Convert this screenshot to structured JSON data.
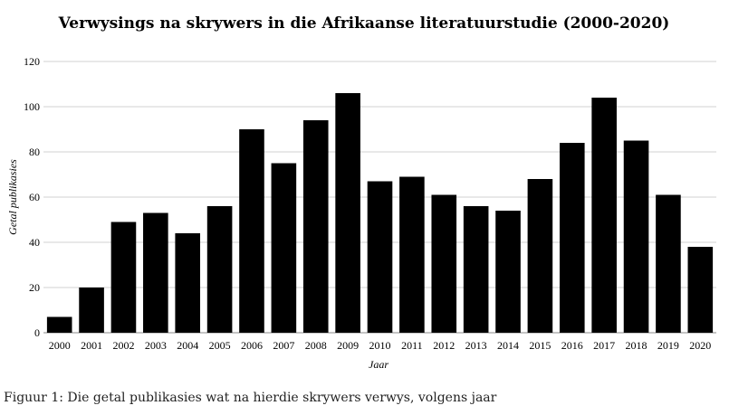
{
  "chart_data": {
    "type": "bar",
    "title": "Verwysings na skrywers in die Afrikaanse literatuurstudie (2000-2020)",
    "xlabel": "Jaar",
    "ylabel": "Getal publikasies",
    "ylim": [
      0,
      120
    ],
    "yticks": [
      "0",
      "20",
      "40",
      "60",
      "80",
      "100",
      "120"
    ],
    "grid": true,
    "categories": [
      "2000",
      "2001",
      "2002",
      "2003",
      "2004",
      "2005",
      "2006",
      "2007",
      "2008",
      "2009",
      "2010",
      "2011",
      "2012",
      "2013",
      "2014",
      "2015",
      "2016",
      "2017",
      "2018",
      "2019",
      "2020"
    ],
    "values": [
      7,
      20,
      49,
      53,
      44,
      56,
      90,
      75,
      94,
      106,
      67,
      69,
      61,
      56,
      54,
      68,
      84,
      104,
      85,
      61,
      38
    ],
    "bar_color": "#000000",
    "grid_color": "#d0d0d0"
  },
  "caption": "Figuur 1: Die getal publikasies wat na hierdie skrywers verwys, volgens jaar"
}
